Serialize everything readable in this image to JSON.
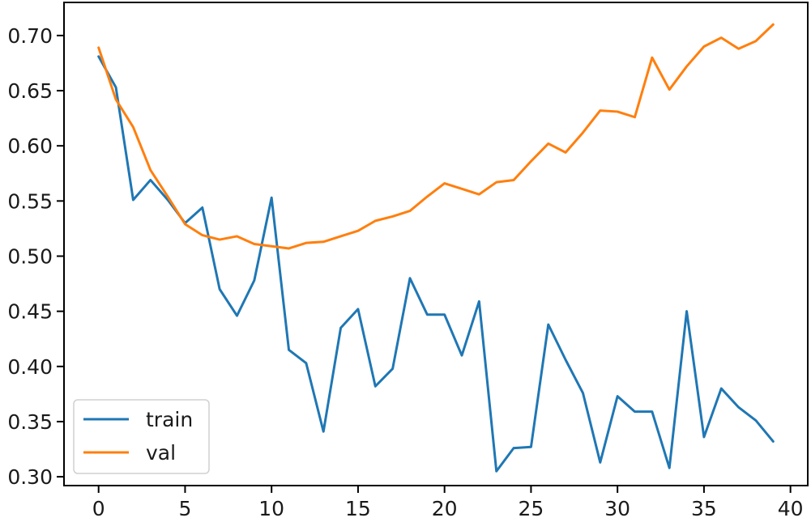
{
  "chart_data": {
    "type": "line",
    "title": "",
    "xlabel": "",
    "ylabel": "",
    "xlim": [
      -2,
      41
    ],
    "ylim": [
      0.292,
      0.73
    ],
    "xticks": [
      0,
      5,
      10,
      15,
      20,
      25,
      30,
      35,
      40
    ],
    "yticks": [
      0.3,
      0.35,
      0.4,
      0.45,
      0.5,
      0.55,
      0.6,
      0.65,
      0.7
    ],
    "ytick_format": "0.00",
    "grid": false,
    "legend_position": "lower-left",
    "x": [
      0,
      1,
      2,
      3,
      4,
      5,
      6,
      7,
      8,
      9,
      10,
      11,
      12,
      13,
      14,
      15,
      16,
      17,
      18,
      19,
      20,
      21,
      22,
      23,
      24,
      25,
      26,
      27,
      28,
      29,
      30,
      31,
      32,
      33,
      34,
      35,
      36,
      37,
      38,
      39
    ],
    "series": [
      {
        "name": "train",
        "color": "#1f77b4",
        "values": [
          0.681,
          0.653,
          0.551,
          0.569,
          0.551,
          0.53,
          0.544,
          0.47,
          0.446,
          0.478,
          0.553,
          0.415,
          0.403,
          0.341,
          0.435,
          0.452,
          0.382,
          0.398,
          0.48,
          0.447,
          0.447,
          0.41,
          0.459,
          0.305,
          0.326,
          0.327,
          0.438,
          0.406,
          0.376,
          0.313,
          0.373,
          0.359,
          0.359,
          0.308,
          0.45,
          0.336,
          0.38,
          0.363,
          0.351,
          0.332
        ]
      },
      {
        "name": "val",
        "color": "#ff7f0e",
        "values": [
          0.689,
          0.642,
          0.617,
          0.578,
          0.554,
          0.529,
          0.519,
          0.515,
          0.518,
          0.511,
          0.509,
          0.507,
          0.512,
          0.513,
          0.518,
          0.523,
          0.532,
          0.536,
          0.541,
          0.554,
          0.566,
          0.561,
          0.556,
          0.567,
          0.569,
          0.586,
          0.602,
          0.594,
          0.612,
          0.632,
          0.631,
          0.626,
          0.68,
          0.651,
          0.672,
          0.69,
          0.698,
          0.688,
          0.695,
          0.71
        ]
      }
    ]
  }
}
